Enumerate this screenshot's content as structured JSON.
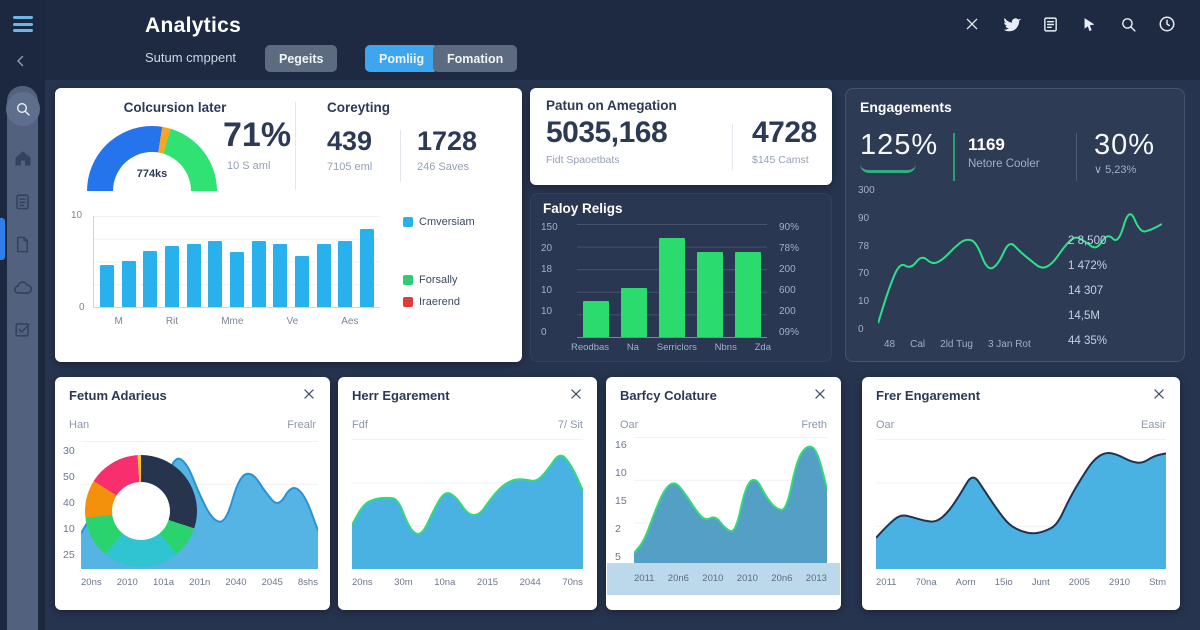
{
  "header": {
    "title": "Analytics",
    "subtitle": "Sutum cmppent",
    "tabs": [
      {
        "label": "Pegeits"
      },
      {
        "label": "Pomliig"
      },
      {
        "label": "Fomation"
      }
    ],
    "icons": [
      "close-icon",
      "twitter-icon",
      "notes-icon",
      "pointer-icon",
      "search-icon",
      "clock-icon"
    ]
  },
  "sidebar": {
    "icons": [
      "menu-icon",
      "back-chevron-icon",
      "search-icon",
      "home-icon",
      "clipboard-icon",
      "file-icon",
      "cloud-icon",
      "task-icon"
    ]
  },
  "colors": {
    "accent_blue": "#3ea6ec",
    "bar_blue": "#29b1ed",
    "green": "#2bdb6e",
    "line_green": "#2fe08b",
    "area_blue": "#49b2e3",
    "dark_navy": "#1d2a42"
  },
  "conversion": {
    "title": "Colcursion later",
    "gauge": {
      "type": "gauge",
      "value": "71%",
      "sub": "10 S aml",
      "inner": "774ks",
      "segments": [
        {
          "color": "#2574ec",
          "deg": 99
        },
        {
          "color": "#f5a623",
          "deg": 8
        },
        {
          "color": "#30e173",
          "deg": 73
        }
      ]
    },
    "stats_title": "Coreyting",
    "stats": [
      {
        "value": "439",
        "label": "7105 eml"
      },
      {
        "value": "1728",
        "label": "246 Saves"
      }
    ],
    "bar_chart": {
      "type": "bar",
      "color": "#29b1ed",
      "max": 10,
      "striped": true,
      "values": [
        4.6,
        5.1,
        6.2,
        6.7,
        6.9,
        7.3,
        6.1,
        7.3,
        6.9,
        5.6,
        6.9,
        7.3,
        8.6
      ],
      "y_top": "10",
      "y_bottom": "0",
      "x_labels": [
        "M",
        "Rit",
        "Mme",
        "Ve",
        "Aes"
      ]
    },
    "legend": [
      {
        "label": "Cmversiam",
        "color": "#29b1ed"
      },
      {
        "label": "Forsally",
        "color": "#2ecc71"
      },
      {
        "label": "Iraerend",
        "color": "#e23b3b"
      }
    ]
  },
  "returns": {
    "title": "Patun on Amegation",
    "stats": [
      {
        "value": "5035,168",
        "label": "Fidt Spaoetbats"
      },
      {
        "value": "4728",
        "label": "$145 Camst"
      }
    ]
  },
  "policy": {
    "title": "Faloy Religs",
    "chart": {
      "type": "bar",
      "color": "#2bdb6e",
      "max": 100,
      "values": [
        32,
        43,
        88,
        75,
        75
      ]
    },
    "left_axis": [
      "150",
      "20",
      "18",
      "10",
      "10",
      "0"
    ],
    "right_axis": [
      "90%",
      "78%",
      "200",
      "600",
      "200",
      "09%"
    ],
    "x_labels": [
      "Reodbas",
      "Na",
      "Serriclors",
      "Nbns",
      "Zda"
    ]
  },
  "engagements": {
    "title": "Engagements",
    "stat1": {
      "value": "125%"
    },
    "stat2": {
      "value": "1169",
      "label": "Netore Cooler"
    },
    "stat3": {
      "value": "30%",
      "label": "∨ 5,23%"
    },
    "chart": {
      "type": "line",
      "stroke": "#2fe08b",
      "max": 100,
      "values": [
        8,
        32,
        50,
        45,
        55,
        48,
        52,
        60,
        66,
        64,
        44,
        48,
        65,
        57,
        51,
        45,
        49,
        60,
        68,
        64,
        58,
        70,
        62,
        88,
        70,
        72,
        76
      ]
    },
    "left_axis": [
      "300",
      "90",
      "78",
      "70",
      "10",
      "0"
    ],
    "x_labels": [
      "48",
      "Cal",
      "2ld Tug",
      "3 Jan Rot"
    ],
    "right_values": [
      "2 8,500",
      "1 472%",
      "14 307",
      "14,5M",
      "44 35%"
    ]
  },
  "bottom_cards": [
    {
      "title": "Fetum Adarieus",
      "left": "Han",
      "right": "Frealr",
      "y_axis": [
        "30",
        "50",
        "40",
        "10",
        "25"
      ],
      "x_labels": [
        "20ns",
        "2010",
        "101a",
        "201n",
        "2040",
        "2045",
        "8shs"
      ],
      "area": {
        "type": "area",
        "stroke": "#2693d6",
        "fill": "#55b4e3",
        "max": 100,
        "values": [
          28,
          45,
          38,
          34,
          40,
          36,
          50,
          88,
          84,
          58,
          38,
          36,
          72,
          76,
          60,
          48,
          66,
          58,
          30
        ]
      },
      "donut": {
        "type": "donut",
        "segments": [
          {
            "color": "#27344e",
            "pct": 30
          },
          {
            "color": "#2bd36e",
            "pct": 9
          },
          {
            "color": "#2fc4cf",
            "pct": 22
          },
          {
            "color": "#2bd36e",
            "pct": 12
          },
          {
            "color": "#f3910c",
            "pct": 11
          },
          {
            "color": "#f72f6e",
            "pct": 15
          },
          {
            "color": "#f8c32c",
            "pct": 1
          }
        ]
      }
    },
    {
      "title": "Herr Egarement",
      "left": "Fdf",
      "right": "7/ Sit",
      "x_labels": [
        "20ns",
        "30m",
        "10na",
        "2015",
        "2044",
        "70ns"
      ],
      "area": {
        "type": "area",
        "stroke": "#33da7a",
        "fill": "#49b2e3",
        "max": 100,
        "values": [
          34,
          50,
          54,
          55,
          54,
          30,
          25,
          44,
          60,
          56,
          42,
          41,
          54,
          64,
          69,
          69,
          67,
          77,
          90,
          80,
          60
        ]
      }
    },
    {
      "title": "Barfcy Colature",
      "left": "Oar",
      "right": "Freth",
      "y_axis": [
        "16",
        "10",
        "15",
        "2",
        "5"
      ],
      "x_labels": [
        "2011",
        "20n6",
        "2010",
        "2010",
        "20n6",
        "2013"
      ],
      "area": {
        "type": "area",
        "stroke": "#33da7a",
        "fill": "#549fc6",
        "max": 16,
        "values": [
          1.5,
          3,
          6.5,
          9.5,
          10.5,
          9,
          7,
          5.5,
          6.2,
          4.5,
          4,
          10,
          11,
          8.5,
          7,
          6.8,
          13,
          15,
          14.5,
          9.5
        ]
      }
    },
    {
      "title": "Frer Engarement",
      "left": "Oar",
      "right": "Easir",
      "x_labels": [
        "2011",
        "70na",
        "Aorn",
        "15io",
        "Junt",
        "2005",
        "2910",
        "Stm"
      ],
      "area": {
        "type": "area",
        "stroke": "#1f3350",
        "fill": "#49b2e3",
        "max": 100,
        "values": [
          24,
          34,
          42,
          40,
          37,
          36,
          44,
          58,
          74,
          60,
          46,
          34,
          29,
          27,
          29,
          34,
          54,
          70,
          84,
          90,
          88,
          83,
          81,
          87,
          89
        ]
      }
    }
  ]
}
